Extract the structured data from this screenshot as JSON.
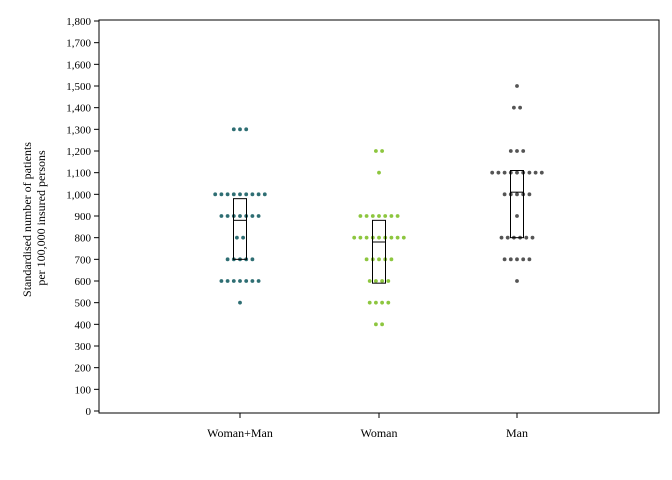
{
  "chart_data": {
    "type": "scatter",
    "title": "",
    "xlabel": "",
    "ylabel_lines": [
      "Standardised number of patients",
      "per 100,000 insured persons"
    ],
    "ylim": [
      0,
      1800
    ],
    "y_tick_step": 100,
    "y_tick_labels": [
      "0",
      "100",
      "200",
      "300",
      "400",
      "500",
      "600",
      "700",
      "800",
      "900",
      "1,000",
      "1,100",
      "1,200",
      "1,300",
      "1,400",
      "1,500",
      "1,600",
      "1,700",
      "1,800"
    ],
    "categories": [
      "Woman+Man",
      "Woman",
      "Man"
    ],
    "grid": false,
    "series": [
      {
        "category": "Woman+Man",
        "color": "#2e6e73",
        "values": [
          1300,
          1300,
          1300,
          1000,
          1000,
          1000,
          1000,
          1000,
          1000,
          1000,
          1000,
          1000,
          900,
          900,
          900,
          900,
          900,
          900,
          900,
          800,
          800,
          700,
          700,
          700,
          700,
          700,
          600,
          600,
          600,
          600,
          600,
          600,
          600,
          500
        ],
        "box": {
          "q1": 700,
          "median": 880,
          "q3": 980
        }
      },
      {
        "category": "Woman",
        "color": "#8dc63f",
        "values": [
          1200,
          1200,
          1100,
          900,
          900,
          900,
          900,
          900,
          900,
          900,
          800,
          800,
          800,
          800,
          800,
          800,
          800,
          800,
          800,
          700,
          700,
          700,
          700,
          700,
          600,
          600,
          600,
          600,
          500,
          500,
          500,
          500,
          400,
          400
        ],
        "box": {
          "q1": 590,
          "median": 780,
          "q3": 880
        }
      },
      {
        "category": "Man",
        "color": "#555555",
        "values": [
          1500,
          1400,
          1400,
          1200,
          1200,
          1200,
          1100,
          1100,
          1100,
          1100,
          1100,
          1100,
          1100,
          1100,
          1100,
          1000,
          1000,
          1000,
          1000,
          1000,
          900,
          800,
          800,
          800,
          800,
          800,
          800,
          700,
          700,
          700,
          700,
          700,
          600
        ],
        "box": {
          "q1": 800,
          "median": 1010,
          "q3": 1110
        }
      }
    ]
  }
}
